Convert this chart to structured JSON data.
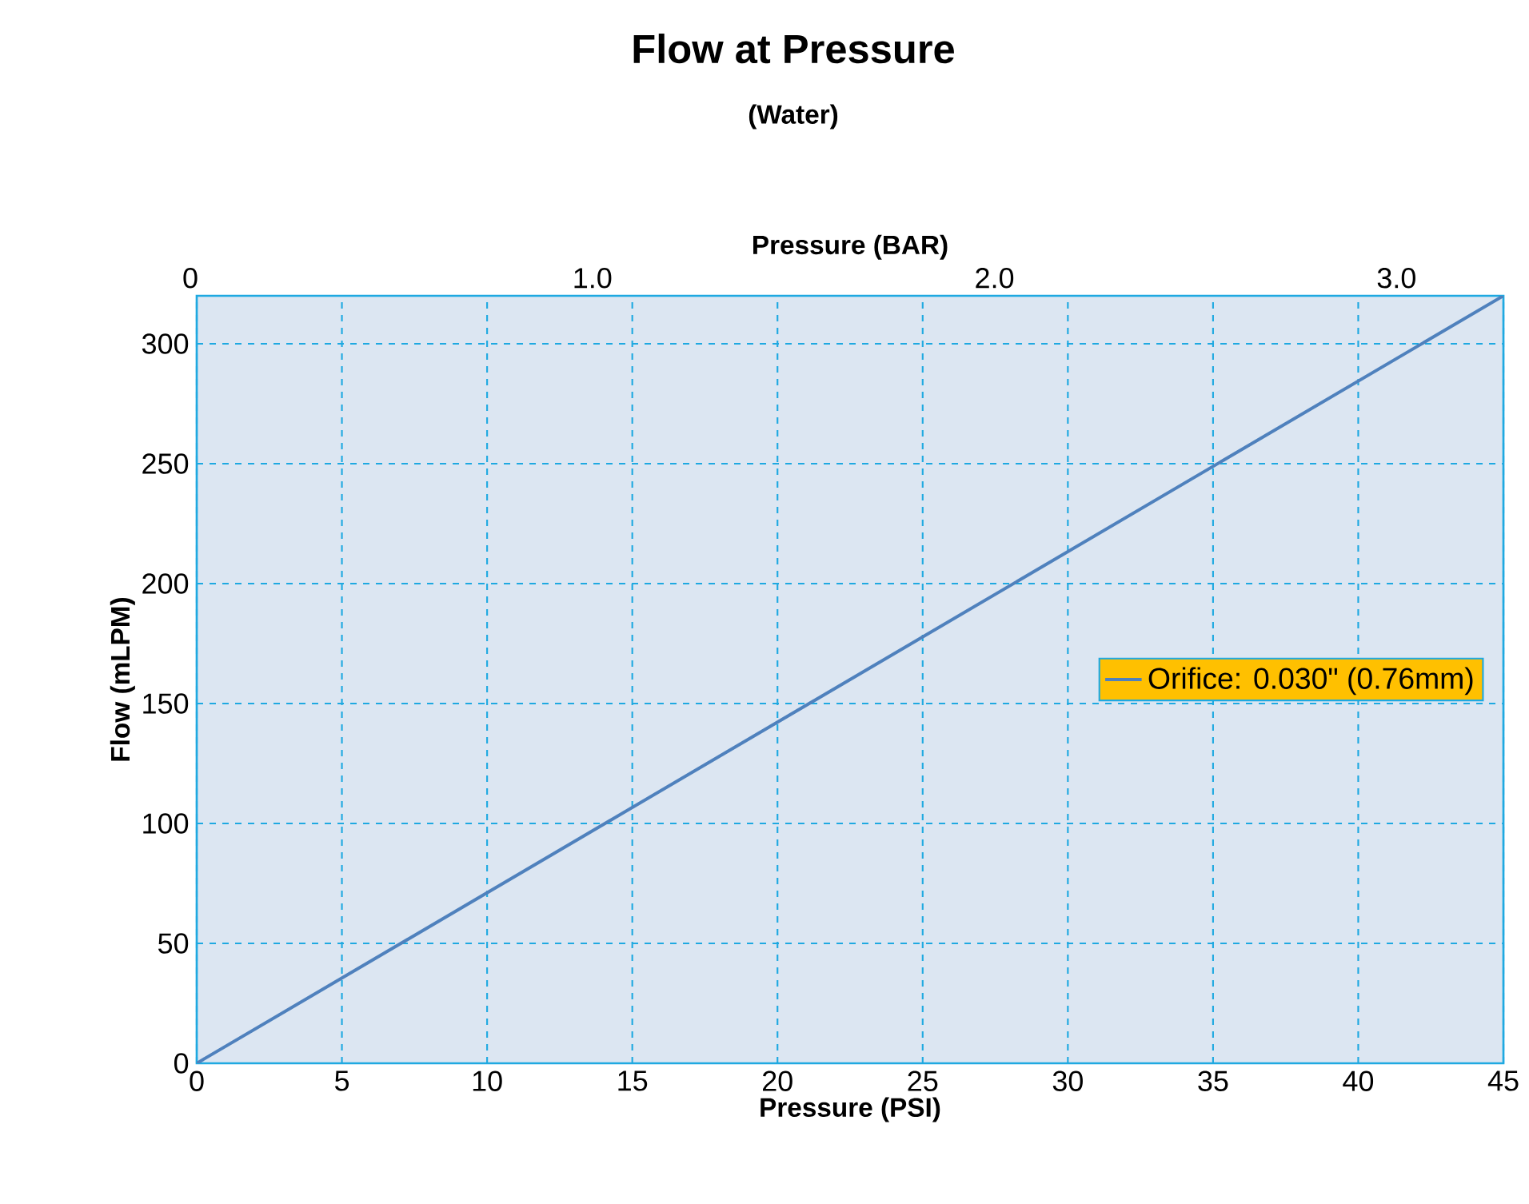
{
  "chart_data": {
    "type": "line",
    "title": "Flow at Pressure",
    "subtitle": "(Water)",
    "xlabel": "Pressure (PSI)",
    "ylabel": "Flow (mLPM)",
    "x2label": "Pressure (BAR)",
    "x": [
      0,
      45
    ],
    "series": [
      {
        "name": "Orifice: 0.030\" (0.76mm)",
        "color": "#4f81bd",
        "values": [
          0,
          320
        ]
      }
    ],
    "xlim": [
      0,
      45
    ],
    "xticks": [
      0,
      5,
      10,
      15,
      20,
      25,
      30,
      35,
      40,
      45
    ],
    "ylim": [
      0,
      320
    ],
    "yticks": [
      0,
      50,
      100,
      150,
      200,
      250,
      300
    ],
    "x2lim": [
      0,
      3.25
    ],
    "x2ticks": [
      0,
      {
        "value": 1,
        "label": "1.0"
      },
      {
        "value": 2,
        "label": "2.0"
      },
      {
        "value": 3,
        "label": "3.0"
      }
    ],
    "grid": true,
    "legend": "right",
    "marker": "none",
    "line_style": "solid"
  }
}
